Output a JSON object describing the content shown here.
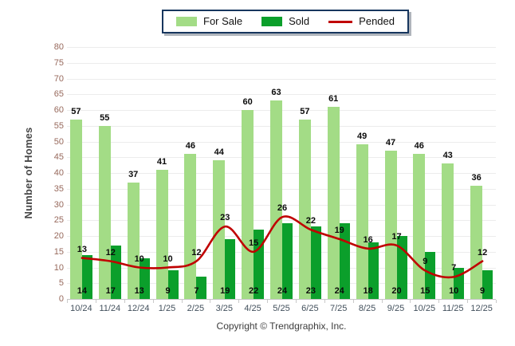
{
  "legend": {
    "items": [
      {
        "label": "For Sale",
        "swatch": "box"
      },
      {
        "label": "Sold",
        "swatch": "box"
      },
      {
        "label": "Pended",
        "swatch": "line"
      }
    ]
  },
  "footer": {
    "copyright": "Copyright © Trendgraphix, Inc."
  },
  "colors": {
    "for_sale": "#a3dc86",
    "sold": "#0b9f2b",
    "pended": "#c00000",
    "gridline": "#ececec",
    "axis_line": "#c6c6c6",
    "y_tick_text": "#97695c",
    "x_tick_text": "#42505c"
  },
  "chart_data": {
    "type": "bar",
    "categories": [
      "10/24",
      "11/24",
      "12/24",
      "1/25",
      "2/25",
      "3/25",
      "4/25",
      "5/25",
      "6/25",
      "7/25",
      "8/25",
      "9/25",
      "10/25",
      "11/25",
      "12/25"
    ],
    "series": [
      {
        "name": "For Sale",
        "type": "bar",
        "color": "#a3dc86",
        "values": [
          57,
          55,
          37,
          41,
          46,
          44,
          60,
          63,
          57,
          61,
          49,
          47,
          46,
          43,
          36
        ]
      },
      {
        "name": "Sold",
        "type": "bar",
        "color": "#0b9f2b",
        "values": [
          14,
          17,
          13,
          9,
          7,
          19,
          22,
          24,
          23,
          24,
          18,
          20,
          15,
          10,
          9
        ]
      },
      {
        "name": "Pended",
        "type": "line",
        "color": "#c00000",
        "values": [
          13,
          12,
          10,
          10,
          12,
          23,
          15,
          26,
          22,
          19,
          16,
          17,
          9,
          7,
          12
        ]
      }
    ],
    "title": "",
    "xlabel": "",
    "ylabel": "Number of Homes",
    "ylim": [
      0,
      80
    ],
    "yticks": [
      0,
      5,
      10,
      15,
      20,
      25,
      30,
      35,
      40,
      45,
      50,
      55,
      60,
      65,
      70,
      75,
      80
    ],
    "grid": true,
    "data_labels": true,
    "legend_position": "top-center"
  }
}
